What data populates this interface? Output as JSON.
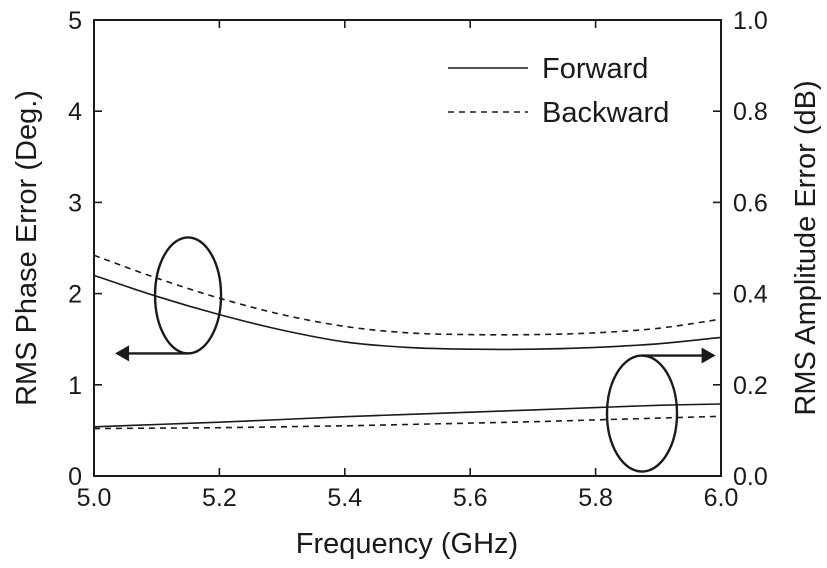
{
  "chart_data": {
    "type": "line",
    "x": [
      5.0,
      5.1,
      5.2,
      5.3,
      5.4,
      5.5,
      5.6,
      5.7,
      5.8,
      5.9,
      6.0
    ],
    "xlabel": "Frequency (GHz)",
    "xlim": [
      5.0,
      6.0
    ],
    "xticks": [
      "5.0",
      "5.2",
      "5.4",
      "5.6",
      "5.8",
      "6.0"
    ],
    "left_axis": {
      "label": "RMS Phase Error (Deg.)",
      "lim": [
        0,
        5
      ],
      "ticks": [
        "0",
        "1",
        "2",
        "3",
        "4",
        "5"
      ]
    },
    "right_axis": {
      "label": "RMS Amplitude Error (dB)",
      "lim": [
        0.0,
        1.0
      ],
      "ticks": [
        "0.0",
        "0.2",
        "0.4",
        "0.6",
        "0.8",
        "1.0"
      ]
    },
    "legend": {
      "placement": "top-right",
      "entries": [
        {
          "name": "Forward",
          "style": "solid"
        },
        {
          "name": "Backward",
          "style": "dashed"
        }
      ]
    },
    "series": [
      {
        "name": "Forward",
        "group": "phase",
        "axis": "left",
        "style": "solid",
        "values": [
          2.2,
          1.97,
          1.77,
          1.6,
          1.47,
          1.41,
          1.39,
          1.39,
          1.41,
          1.45,
          1.52
        ]
      },
      {
        "name": "Backward",
        "group": "phase",
        "axis": "left",
        "style": "dashed",
        "values": [
          2.42,
          2.17,
          1.95,
          1.77,
          1.64,
          1.57,
          1.55,
          1.55,
          1.57,
          1.62,
          1.72
        ]
      },
      {
        "name": "Forward",
        "group": "amplitude",
        "axis": "right",
        "style": "solid",
        "values": [
          0.108,
          0.113,
          0.118,
          0.124,
          0.13,
          0.135,
          0.14,
          0.145,
          0.15,
          0.155,
          0.158
        ]
      },
      {
        "name": "Backward",
        "group": "amplitude",
        "axis": "right",
        "style": "dashed",
        "values": [
          0.104,
          0.105,
          0.106,
          0.108,
          0.11,
          0.113,
          0.116,
          0.119,
          0.123,
          0.127,
          0.131
        ]
      }
    ],
    "annotations": [
      {
        "type": "ellipse-arrow",
        "target": "phase curves",
        "points_to": "left axis"
      },
      {
        "type": "ellipse-arrow",
        "target": "amplitude curves",
        "points_to": "right axis"
      }
    ],
    "grid": false,
    "colors": {
      "line": "#1a1a1a",
      "background": "#ffffff"
    }
  }
}
